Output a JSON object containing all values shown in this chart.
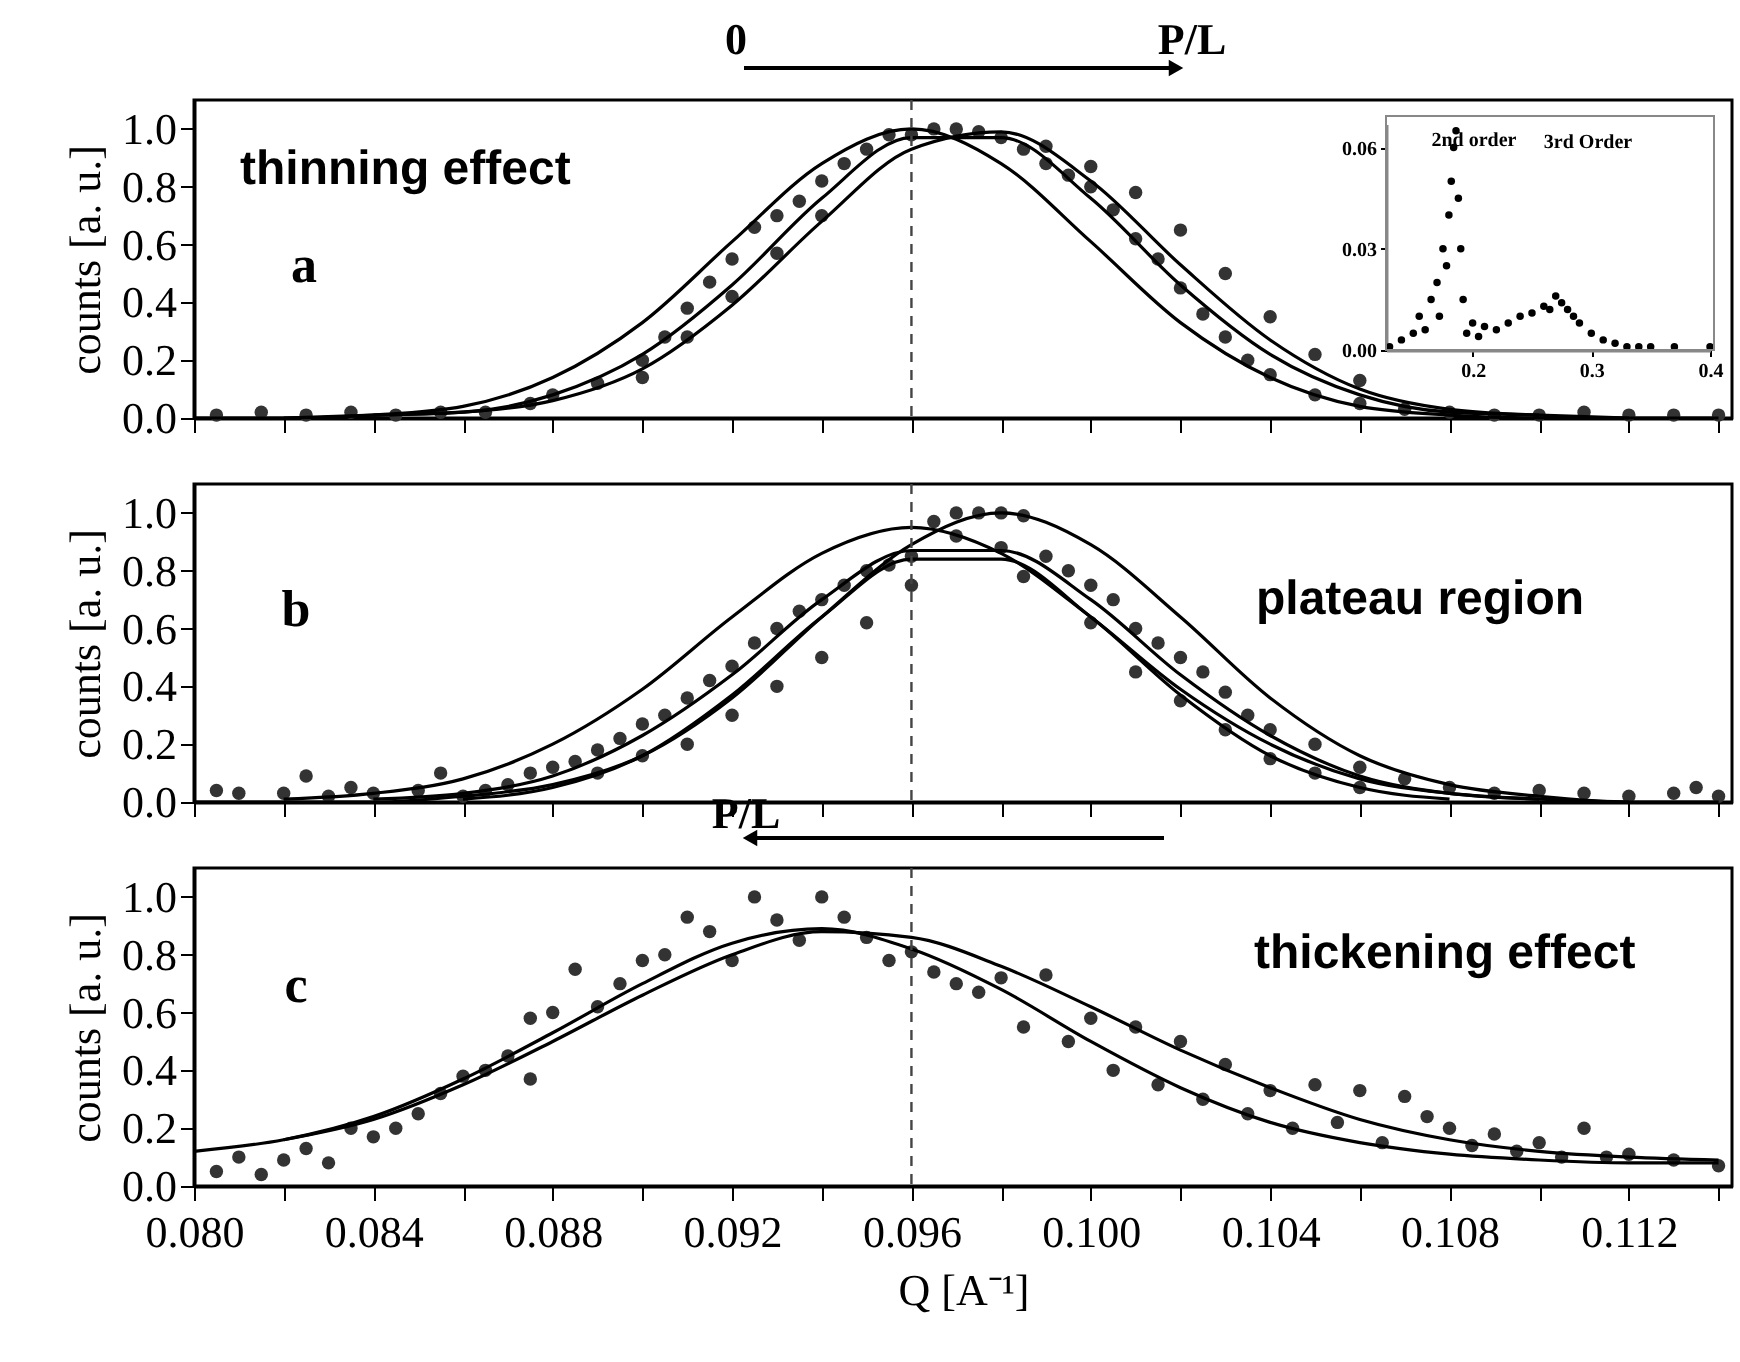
{
  "chart_data": [
    {
      "type": "scatter",
      "ylabel": "counts [a. u.]",
      "xlim": [
        0.08,
        0.1143
      ],
      "ylim": [
        0,
        1.1
      ],
      "tick_labels": "y",
      "xticks": [
        0.08,
        0.082,
        0.084,
        0.086,
        0.088,
        0.09,
        0.092,
        0.094,
        0.096,
        0.098,
        0.1,
        0.102,
        0.104,
        0.106,
        0.108,
        0.11,
        0.112,
        0.114
      ],
      "yticks": [
        {
          "value": 0,
          "label": "0.0"
        },
        0.2,
        0.4,
        0.6,
        0.8,
        {
          "value": 1,
          "label": "1.0"
        }
      ],
      "x": [
        0.08,
        0.082,
        0.084,
        0.086,
        0.088,
        0.09,
        0.092,
        0.094,
        0.096,
        0.098,
        0.1,
        0.102,
        0.104,
        0.106,
        0.108,
        0.11,
        0.112,
        0.114
      ],
      "series": [
        {
          "type": "scatter",
          "marker": "circle",
          "color": "#333333",
          "x": [
            0.0805,
            0.0815,
            0.0825,
            0.0835,
            0.0845,
            0.0855,
            0.0865,
            0.0875,
            0.088,
            0.089,
            0.09,
            0.0905,
            0.091,
            0.0915,
            0.092,
            0.0925,
            0.093,
            0.0935,
            0.094,
            0.0945,
            0.095,
            0.0955,
            0.096,
            0.0965,
            0.097,
            0.0975,
            0.098,
            0.0985,
            0.099,
            0.0995,
            0.1,
            0.1005,
            0.101,
            0.1015,
            0.102,
            0.1025,
            0.103,
            0.1035,
            0.104,
            0.105,
            0.106,
            0.107,
            0.108,
            0.109,
            0.11,
            0.111,
            0.112,
            0.113,
            0.114,
            0.09,
            0.091,
            0.092,
            0.093,
            0.094,
            0.099,
            0.1,
            0.101,
            0.102,
            0.103,
            0.104,
            0.105,
            0.106
          ],
          "values": [
            0.01,
            0.02,
            0.01,
            0.02,
            0.01,
            0.02,
            0.02,
            0.05,
            0.08,
            0.12,
            0.2,
            0.28,
            0.38,
            0.47,
            0.55,
            0.66,
            0.7,
            0.75,
            0.82,
            0.88,
            0.93,
            0.98,
            0.98,
            1.0,
            1.0,
            0.99,
            0.97,
            0.93,
            0.88,
            0.84,
            0.8,
            0.72,
            0.62,
            0.55,
            0.45,
            0.36,
            0.28,
            0.2,
            0.15,
            0.08,
            0.05,
            0.03,
            0.02,
            0.01,
            0.01,
            0.02,
            0.01,
            0.01,
            0.01,
            0.14,
            0.28,
            0.42,
            0.57,
            0.7,
            0.94,
            0.87,
            0.78,
            0.65,
            0.5,
            0.35,
            0.22,
            0.13
          ]
        },
        {
          "type": "line",
          "color": "#000000",
          "values": [
            0,
            0,
            0.01,
            0.04,
            0.14,
            0.33,
            0.61,
            0.88,
            1.0,
            0.88,
            0.61,
            0.33,
            0.14,
            0.04,
            0.01,
            0,
            0,
            0
          ]
        },
        {
          "type": "line",
          "color": "#000000",
          "x": [
            0.082,
            0.084,
            0.086,
            0.088,
            0.09,
            0.092,
            0.094,
            0.096,
            0.098,
            0.1,
            0.102,
            0.104,
            0.106,
            0.108,
            0.11,
            0.112
          ],
          "values": [
            0,
            0.01,
            0.02,
            0.08,
            0.22,
            0.46,
            0.76,
            0.97,
            0.97,
            0.76,
            0.46,
            0.22,
            0.08,
            0.02,
            0.01,
            0
          ]
        },
        {
          "type": "line",
          "color": "#000000",
          "x": [
            0.084,
            0.086,
            0.088,
            0.09,
            0.092,
            0.094,
            0.096,
            0.098,
            0.1,
            0.102,
            0.104,
            0.106,
            0.108,
            0.11
          ],
          "values": [
            0.01,
            0.02,
            0.06,
            0.17,
            0.39,
            0.68,
            0.93,
            0.99,
            0.82,
            0.53,
            0.27,
            0.1,
            0.03,
            0.01
          ]
        }
      ],
      "ref_lines": [
        {
          "axis": "x",
          "value": 0.096,
          "line_style": "dashed",
          "color": "#444444"
        }
      ],
      "annotations": [
        "thinning effect",
        "a",
        "0",
        "P/L"
      ]
    },
    {
      "type": "scatter",
      "xlim": [
        0.127,
        0.4
      ],
      "ylim": [
        0,
        0.067
      ],
      "xticks": [
        0.2,
        0.3,
        0.4
      ],
      "yticks": [
        {
          "value": 0,
          "label": "0.00"
        },
        {
          "value": 0.03,
          "label": "0.03"
        },
        {
          "value": 0.06,
          "label": "0.06"
        }
      ],
      "marker": "circle",
      "color": "#000000",
      "x": [
        0.13,
        0.14,
        0.15,
        0.155,
        0.16,
        0.165,
        0.17,
        0.172,
        0.175,
        0.178,
        0.18,
        0.182,
        0.184,
        0.186,
        0.188,
        0.19,
        0.192,
        0.195,
        0.2,
        0.205,
        0.21,
        0.22,
        0.23,
        0.24,
        0.25,
        0.26,
        0.265,
        0.27,
        0.275,
        0.28,
        0.285,
        0.29,
        0.3,
        0.31,
        0.32,
        0.33,
        0.34,
        0.35,
        0.37,
        0.4
      ],
      "values": [
        0.001,
        0.003,
        0.005,
        0.01,
        0.006,
        0.015,
        0.02,
        0.01,
        0.03,
        0.025,
        0.04,
        0.05,
        0.06,
        0.065,
        0.045,
        0.03,
        0.015,
        0.005,
        0.008,
        0.004,
        0.007,
        0.006,
        0.008,
        0.01,
        0.011,
        0.013,
        0.012,
        0.016,
        0.014,
        0.012,
        0.01,
        0.008,
        0.005,
        0.003,
        0.002,
        0.001,
        0.001,
        0.001,
        0.001,
        0.001
      ],
      "annotations": [
        "2nd order",
        "3rd Order"
      ]
    },
    {
      "type": "scatter",
      "ylabel": "counts [a. u.]",
      "xlim": [
        0.08,
        0.1143
      ],
      "ylim": [
        0,
        1.1
      ],
      "tick_labels": "y",
      "xticks": [
        0.08,
        0.082,
        0.084,
        0.086,
        0.088,
        0.09,
        0.092,
        0.094,
        0.096,
        0.098,
        0.1,
        0.102,
        0.104,
        0.106,
        0.108,
        0.11,
        0.112,
        0.114
      ],
      "yticks": [
        {
          "value": 0,
          "label": "0.0"
        },
        0.2,
        0.4,
        0.6,
        0.8,
        {
          "value": 1,
          "label": "1.0"
        }
      ],
      "x": [
        0.08,
        0.082,
        0.084,
        0.086,
        0.088,
        0.09,
        0.092,
        0.094,
        0.096,
        0.098,
        0.1,
        0.102,
        0.104,
        0.106,
        0.108,
        0.11,
        0.112,
        0.114
      ],
      "series": [
        {
          "type": "scatter",
          "marker": "circle",
          "color": "#333333",
          "x": [
            0.0805,
            0.081,
            0.082,
            0.0825,
            0.083,
            0.0835,
            0.084,
            0.085,
            0.0855,
            0.086,
            0.0865,
            0.087,
            0.0875,
            0.088,
            0.0885,
            0.089,
            0.089,
            0.0895,
            0.09,
            0.09,
            0.0905,
            0.091,
            0.091,
            0.0915,
            0.092,
            0.092,
            0.0925,
            0.093,
            0.093,
            0.0935,
            0.094,
            0.094,
            0.0945,
            0.095,
            0.095,
            0.0955,
            0.096,
            0.096,
            0.0965,
            0.097,
            0.0975,
            0.098,
            0.0985,
            0.097,
            0.098,
            0.099,
            0.0985,
            0.0995,
            0.1,
            0.1,
            0.1005,
            0.101,
            0.101,
            0.1015,
            0.102,
            0.102,
            0.1025,
            0.103,
            0.103,
            0.1035,
            0.104,
            0.104,
            0.105,
            0.105,
            0.106,
            0.106,
            0.107,
            0.108,
            0.109,
            0.11,
            0.111,
            0.112,
            0.113,
            0.1135,
            0.114
          ],
          "values": [
            0.04,
            0.03,
            0.03,
            0.09,
            0.02,
            0.05,
            0.03,
            0.04,
            0.1,
            0.02,
            0.04,
            0.06,
            0.1,
            0.12,
            0.14,
            0.18,
            0.1,
            0.22,
            0.27,
            0.16,
            0.3,
            0.36,
            0.2,
            0.42,
            0.47,
            0.3,
            0.55,
            0.6,
            0.4,
            0.66,
            0.7,
            0.5,
            0.75,
            0.8,
            0.62,
            0.82,
            0.85,
            0.75,
            0.97,
            1.0,
            1.0,
            1.0,
            0.99,
            0.92,
            0.88,
            0.85,
            0.78,
            0.8,
            0.75,
            0.62,
            0.7,
            0.6,
            0.45,
            0.55,
            0.5,
            0.35,
            0.45,
            0.38,
            0.25,
            0.3,
            0.25,
            0.15,
            0.2,
            0.1,
            0.12,
            0.05,
            0.08,
            0.05,
            0.03,
            0.04,
            0.03,
            0.02,
            0.03,
            0.05,
            0.02
          ]
        },
        {
          "type": "line",
          "color": "#000000",
          "values": [
            0,
            0,
            0,
            0.02,
            0.06,
            0.16,
            0.36,
            0.64,
            0.89,
            1.0,
            0.89,
            0.64,
            0.36,
            0.16,
            0.06,
            0.02,
            0,
            0
          ]
        },
        {
          "type": "line",
          "color": "#000000",
          "x": [
            0.082,
            0.084,
            0.086,
            0.088,
            0.09,
            0.092,
            0.094,
            0.096,
            0.098,
            0.1,
            0.102,
            0.104,
            0.106,
            0.108,
            0.11,
            0.112
          ],
          "values": [
            0.01,
            0.03,
            0.08,
            0.2,
            0.39,
            0.64,
            0.86,
            0.95,
            0.86,
            0.64,
            0.39,
            0.2,
            0.08,
            0.03,
            0.01,
            0
          ]
        },
        {
          "type": "line",
          "color": "#000000",
          "x": [
            0.084,
            0.086,
            0.088,
            0.09,
            0.092,
            0.094,
            0.096,
            0.098,
            0.1,
            0.102,
            0.104,
            0.106,
            0.108,
            0.11
          ],
          "values": [
            0.01,
            0.03,
            0.09,
            0.23,
            0.44,
            0.7,
            0.87,
            0.87,
            0.7,
            0.44,
            0.23,
            0.09,
            0.03,
            0.01
          ]
        },
        {
          "type": "line",
          "color": "#000000",
          "x": [
            0.086,
            0.088,
            0.09,
            0.092,
            0.094,
            0.096,
            0.098,
            0.1,
            0.102,
            0.104,
            0.106,
            0.108
          ],
          "values": [
            0.01,
            0.05,
            0.16,
            0.37,
            0.64,
            0.84,
            0.84,
            0.64,
            0.37,
            0.16,
            0.05,
            0.01
          ]
        }
      ],
      "ref_lines": [
        {
          "axis": "x",
          "value": 0.096,
          "line_style": "dashed",
          "color": "#444444"
        }
      ],
      "annotations": [
        "plateau region",
        "b"
      ]
    },
    {
      "type": "scatter",
      "ylabel": "counts [a. u.]",
      "xlabel": "Q [A⁻¹]",
      "xlim": [
        0.08,
        0.1143
      ],
      "ylim": [
        0,
        1.1
      ],
      "xticks": [
        {
          "value": 0.08,
          "label": "0.080"
        },
        {
          "value": 0.082,
          "label": null
        },
        0.084,
        {
          "value": 0.086,
          "label": null
        },
        0.088,
        {
          "value": 0.09,
          "label": null
        },
        0.092,
        {
          "value": 0.094,
          "label": null
        },
        0.096,
        {
          "value": 0.098,
          "label": null
        },
        {
          "value": 0.1,
          "label": "0.100"
        },
        {
          "value": 0.102,
          "label": null
        },
        0.104,
        {
          "value": 0.106,
          "label": null
        },
        0.108,
        {
          "value": 0.11,
          "label": null
        },
        0.112,
        {
          "value": 0.114,
          "label": null
        }
      ],
      "yticks": [
        {
          "value": 0,
          "label": "0.0"
        },
        0.2,
        0.4,
        0.6,
        0.8,
        {
          "value": 1,
          "label": "1.0"
        }
      ],
      "x": [
        0.08,
        0.082,
        0.084,
        0.086,
        0.088,
        0.09,
        0.092,
        0.094,
        0.096,
        0.098,
        0.1,
        0.102,
        0.104,
        0.106,
        0.108,
        0.11,
        0.112,
        0.114
      ],
      "series": [
        {
          "type": "scatter",
          "marker": "circle",
          "color": "#333333",
          "x": [
            0.0805,
            0.081,
            0.0815,
            0.082,
            0.0825,
            0.083,
            0.0835,
            0.084,
            0.0845,
            0.085,
            0.0855,
            0.086,
            0.0865,
            0.087,
            0.0875,
            0.0875,
            0.088,
            0.0885,
            0.089,
            0.0895,
            0.09,
            0.0905,
            0.091,
            0.0915,
            0.092,
            0.0925,
            0.093,
            0.0935,
            0.094,
            0.0945,
            0.095,
            0.0955,
            0.096,
            0.0965,
            0.097,
            0.0975,
            0.098,
            0.0985,
            0.099,
            0.0995,
            0.1,
            0.1005,
            0.101,
            0.1015,
            0.102,
            0.1025,
            0.103,
            0.1035,
            0.104,
            0.1045,
            0.105,
            0.1055,
            0.106,
            0.1065,
            0.107,
            0.1075,
            0.108,
            0.1085,
            0.109,
            0.1095,
            0.11,
            0.1105,
            0.111,
            0.1115,
            0.112,
            0.113,
            0.114
          ],
          "values": [
            0.05,
            0.1,
            0.04,
            0.09,
            0.13,
            0.08,
            0.2,
            0.17,
            0.2,
            0.25,
            0.32,
            0.38,
            0.4,
            0.45,
            0.37,
            0.58,
            0.6,
            0.75,
            0.62,
            0.7,
            0.78,
            0.8,
            0.93,
            0.88,
            0.78,
            1.0,
            0.92,
            0.85,
            1.0,
            0.93,
            0.86,
            0.78,
            0.81,
            0.74,
            0.7,
            0.67,
            0.72,
            0.55,
            0.73,
            0.5,
            0.58,
            0.4,
            0.55,
            0.35,
            0.5,
            0.3,
            0.42,
            0.25,
            0.33,
            0.2,
            0.35,
            0.22,
            0.33,
            0.15,
            0.31,
            0.24,
            0.2,
            0.14,
            0.18,
            0.12,
            0.15,
            0.1,
            0.2,
            0.1,
            0.11,
            0.09,
            0.07
          ]
        },
        {
          "type": "line",
          "color": "#000000",
          "values": [
            0.12,
            0.16,
            0.24,
            0.37,
            0.53,
            0.7,
            0.84,
            0.89,
            0.82,
            0.68,
            0.5,
            0.34,
            0.22,
            0.15,
            0.11,
            0.09,
            0.08,
            0.08
          ]
        },
        {
          "type": "line",
          "color": "#000000",
          "x": [
            0.082,
            0.084,
            0.086,
            0.088,
            0.09,
            0.092,
            0.094,
            0.096,
            0.098,
            0.1,
            0.102,
            0.104,
            0.106,
            0.108,
            0.11,
            0.112,
            0.114
          ],
          "values": [
            0.16,
            0.23,
            0.35,
            0.5,
            0.66,
            0.8,
            0.88,
            0.86,
            0.76,
            0.62,
            0.47,
            0.34,
            0.23,
            0.16,
            0.12,
            0.1,
            0.09
          ]
        }
      ],
      "ref_lines": [
        {
          "axis": "x",
          "value": 0.096,
          "line_style": "dashed",
          "color": "#444444"
        }
      ],
      "annotations": [
        "thickening effect",
        "c",
        "P/L"
      ]
    }
  ]
}
